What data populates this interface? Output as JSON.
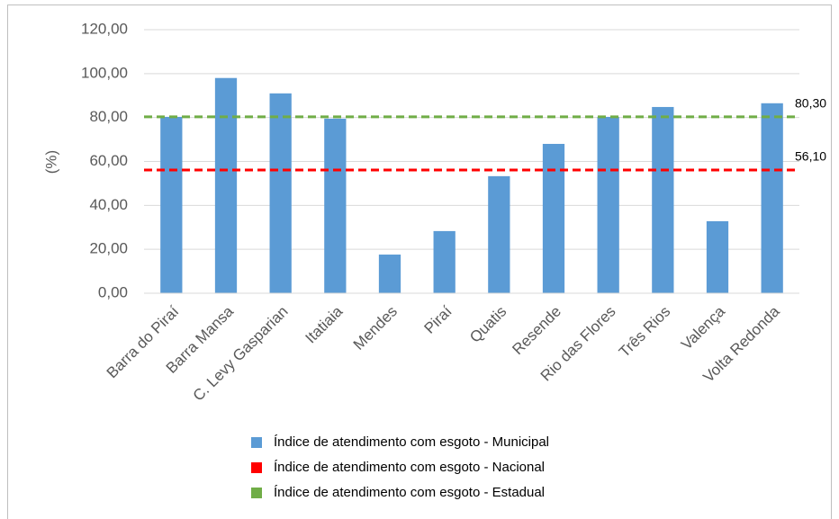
{
  "chart_data": {
    "type": "bar",
    "y_label": "(%)",
    "categories": [
      "Barra do Piraí",
      "Barra Mansa",
      "C. Levy Gasparian",
      "Itatiaia",
      "Mendes",
      "Piraí",
      "Quatis",
      "Resende",
      "Rio das Flores",
      "Três Rios",
      "Valença",
      "Volta Redonda"
    ],
    "series": [
      {
        "name": "Índice de atendimento com esgoto - Municipal",
        "color": "#5b9bd5",
        "values": [
          80.3,
          98,
          91,
          79.5,
          17.6,
          28.3,
          53.3,
          68,
          80.3,
          84.8,
          32.8,
          86.5
        ]
      },
      {
        "name": "Índice de atendimento com esgoto - Nacional",
        "color": "#ff0000",
        "kind": "reference",
        "dashed": true,
        "value": 56.1,
        "value_label": "56,10"
      },
      {
        "name": "Índice de atendimento com esgoto - Estadual",
        "color": "#70ad47",
        "kind": "reference",
        "dashed": true,
        "value": 80.3,
        "value_label": "80,30"
      }
    ],
    "ylim": [
      0,
      120
    ],
    "yticks": [
      {
        "value": 0,
        "label": "0,00"
      },
      {
        "value": 20,
        "label": "20,00"
      },
      {
        "value": 40,
        "label": "40,00"
      },
      {
        "value": 60,
        "label": "60,00"
      },
      {
        "value": 80,
        "label": "80,00"
      },
      {
        "value": 100,
        "label": "100,00"
      },
      {
        "value": 120,
        "label": "120,00"
      }
    ],
    "grid": true,
    "legend": "bottom"
  }
}
